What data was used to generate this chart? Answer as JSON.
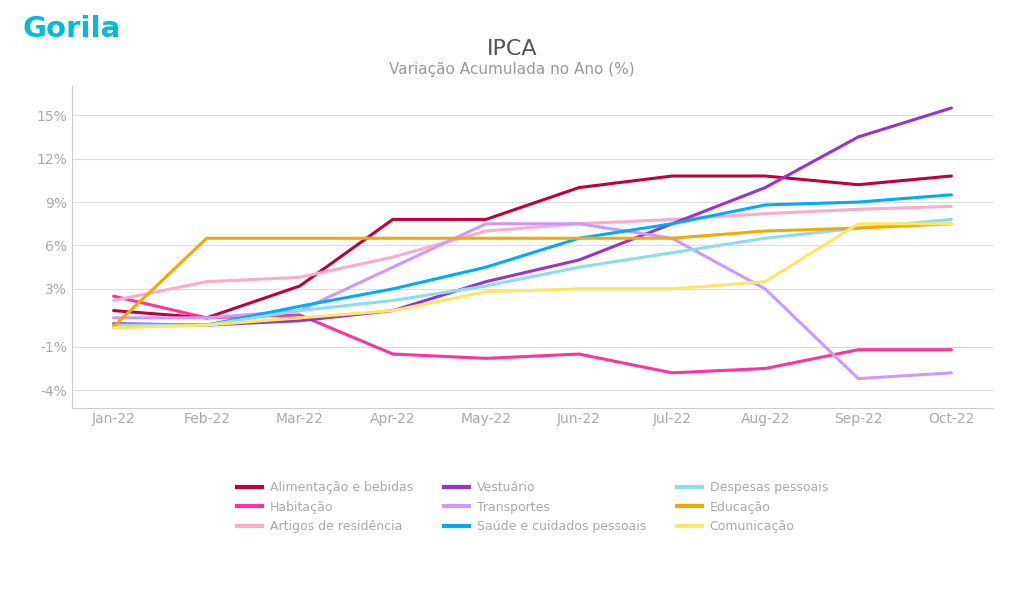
{
  "title": "IPCA",
  "subtitle": "Variação Acumulada no Ano (%)",
  "months": [
    "Jan-22",
    "Feb-22",
    "Mar-22",
    "Apr-22",
    "May-22",
    "Jun-22",
    "Jul-22",
    "Aug-22",
    "Sep-22",
    "Oct-22"
  ],
  "series": [
    {
      "name": "Alimentação e bebidas",
      "color": "#c0003c",
      "values": [
        1.5,
        1.0,
        3.2,
        7.8,
        7.8,
        10.0,
        10.8,
        10.8,
        10.2,
        10.8
      ]
    },
    {
      "name": "Habitação",
      "color": "#ff3399",
      "values": [
        2.5,
        1.0,
        1.2,
        -1.5,
        -1.8,
        -1.5,
        -2.8,
        -2.5,
        -1.2,
        -1.2
      ]
    },
    {
      "name": "Artigos de residência",
      "color": "#ffaacc",
      "values": [
        2.2,
        3.5,
        3.8,
        5.2,
        7.0,
        7.5,
        7.8,
        8.2,
        8.5,
        8.7
      ]
    },
    {
      "name": "Vestuário",
      "color": "#9933cc",
      "values": [
        0.6,
        0.5,
        0.8,
        1.5,
        3.5,
        5.0,
        7.5,
        10.0,
        13.5,
        15.5
      ]
    },
    {
      "name": "Transportes",
      "color": "#cc99ff",
      "values": [
        1.0,
        1.0,
        1.5,
        4.5,
        7.5,
        7.5,
        6.5,
        3.0,
        -3.2,
        -2.8
      ]
    },
    {
      "name": "Saúde e cuidados pessoais",
      "color": "#00aaff",
      "values": [
        0.5,
        0.5,
        1.8,
        3.0,
        4.5,
        6.5,
        7.5,
        8.8,
        9.0,
        9.5
      ]
    },
    {
      "name": "Despesas pessoais",
      "color": "#88ddee",
      "values": [
        0.5,
        0.5,
        1.5,
        2.2,
        3.2,
        4.5,
        5.5,
        6.5,
        7.2,
        7.8
      ]
    },
    {
      "name": "Educação",
      "color": "#f5a800",
      "values": [
        0.4,
        6.5,
        6.5,
        6.5,
        6.5,
        6.5,
        6.5,
        7.0,
        7.2,
        7.5
      ]
    },
    {
      "name": "Comunicação",
      "color": "#ffe566",
      "values": [
        0.3,
        0.5,
        1.0,
        1.5,
        2.8,
        3.0,
        3.0,
        3.5,
        7.5,
        7.5
      ]
    }
  ],
  "legend_order": [
    "Alimentação e bebidas",
    "Habitação",
    "Artigos de residência",
    "Vestuário",
    "Transportes",
    "Saúde e cuidados pessoais",
    "Despesas pessoais",
    "Educação",
    "Comunicação"
  ],
  "yticks": [
    -4,
    -1,
    3,
    6,
    9,
    12,
    15
  ],
  "ytick_labels": [
    "-4%",
    "-1%",
    "3%",
    "6%",
    "9%",
    "12%",
    "15%"
  ],
  "ylim": [
    -5.2,
    17.0
  ],
  "background_color": "#ffffff",
  "grid_color": "#dddddd",
  "title_color": "#555555",
  "subtitle_color": "#999999",
  "tick_color": "#aaaaaa",
  "gorila_color": "#00bcd4",
  "legend_text_color": "#aaaaaa",
  "linewidth": 2.2,
  "border_color": "#cccccc"
}
